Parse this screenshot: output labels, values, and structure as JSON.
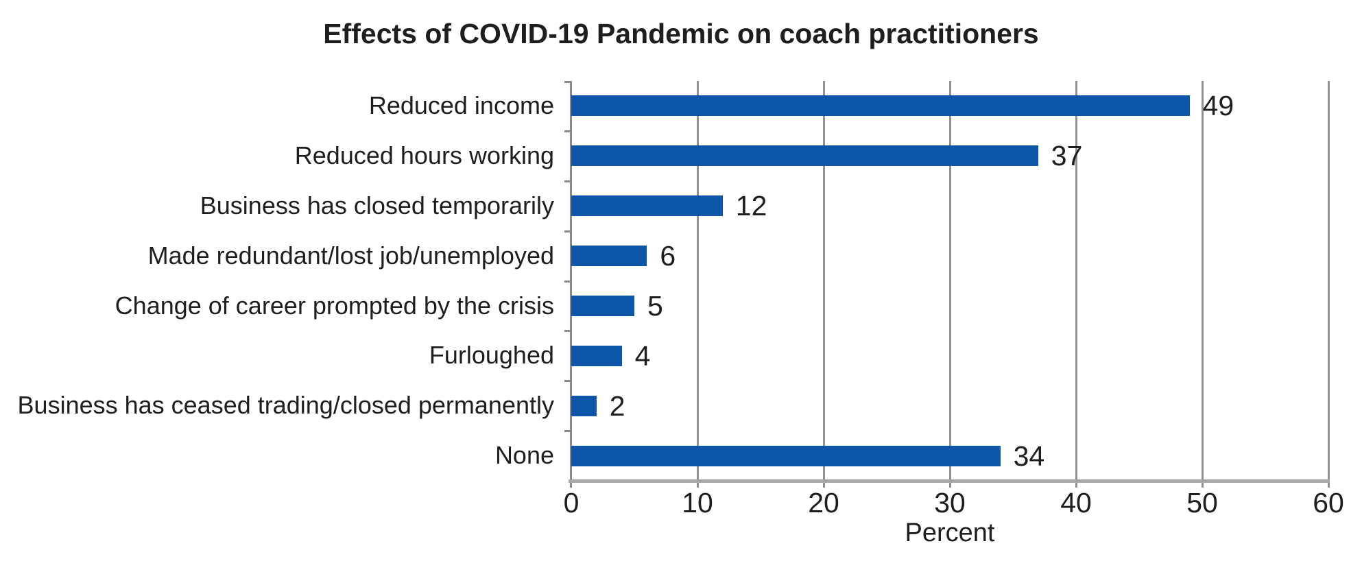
{
  "chart_data": {
    "type": "bar",
    "orientation": "horizontal",
    "title": "Effects of COVID-19 Pandemic on coach practitioners",
    "xlabel": "Percent",
    "categories": [
      "Reduced income",
      "Reduced hours working",
      "Business has closed temporarily",
      "Made redundant/lost job/unemployed",
      "Change of career prompted by the crisis",
      "Furloughed",
      "Business has ceased trading/closed permanently",
      "None"
    ],
    "values": [
      49,
      37,
      12,
      6,
      5,
      4,
      2,
      34
    ],
    "xlim": [
      0,
      60
    ],
    "xticks": [
      0,
      10,
      20,
      30,
      40,
      50,
      60
    ],
    "grid": true,
    "legend": "none",
    "colors": {
      "bar": "#0d56a8",
      "gridline": "#919191",
      "y_axis": "#8a8a8a",
      "x_axis": "#a8a8a8",
      "text": "#1e1e1e",
      "background": "#ffffff"
    }
  }
}
